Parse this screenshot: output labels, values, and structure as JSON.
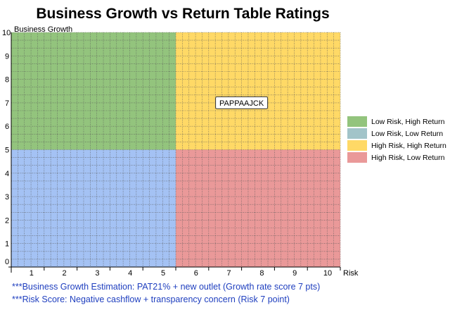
{
  "chart_data": {
    "type": "scatter",
    "title": "Business Growth vs Return Table Ratings",
    "xlabel": "Risk",
    "ylabel": "Business Growth",
    "xlim": [
      0,
      10
    ],
    "ylim": [
      0,
      10
    ],
    "x_ticks": [
      "1",
      "2",
      "3",
      "4",
      "5",
      "6",
      "7",
      "8",
      "9",
      "10"
    ],
    "y_ticks": [
      "0",
      "1",
      "2",
      "3",
      "4",
      "5",
      "6",
      "7",
      "8",
      "9",
      "10"
    ],
    "grid": true,
    "quadrants": [
      {
        "name": "Low Risk, High Return",
        "x": [
          0,
          5
        ],
        "y": [
          5,
          10
        ],
        "color": "#93c47d"
      },
      {
        "name": "Low Risk, Low Return",
        "x": [
          0,
          5
        ],
        "y": [
          0,
          5
        ],
        "color": "#a4c2f4"
      },
      {
        "name": "High Risk, High Return",
        "x": [
          5,
          10
        ],
        "y": [
          5,
          10
        ],
        "color": "#ffd966"
      },
      {
        "name": "High Risk, Low Return",
        "x": [
          5,
          10
        ],
        "y": [
          0,
          5
        ],
        "color": "#ea9999"
      }
    ],
    "points": [
      {
        "label": "PAPPAAJCK",
        "x": 7,
        "y": 7
      }
    ],
    "legend": {
      "position": "right",
      "entries": [
        {
          "label": "Low Risk, High Return",
          "color": "#93c47d"
        },
        {
          "label": "Low Risk, Low Return",
          "color": "#a2c4c9"
        },
        {
          "label": "High Risk, High Return",
          "color": "#ffd966"
        },
        {
          "label": "High Risk, Low Return",
          "color": "#ea9999"
        }
      ]
    }
  },
  "notes": [
    "***Business Growth Estimation: PAT21% + new outlet (Growth rate score 7 pts)",
    "***Risk Score: Negative cashflow + transparency concern (Risk 7 point)"
  ]
}
